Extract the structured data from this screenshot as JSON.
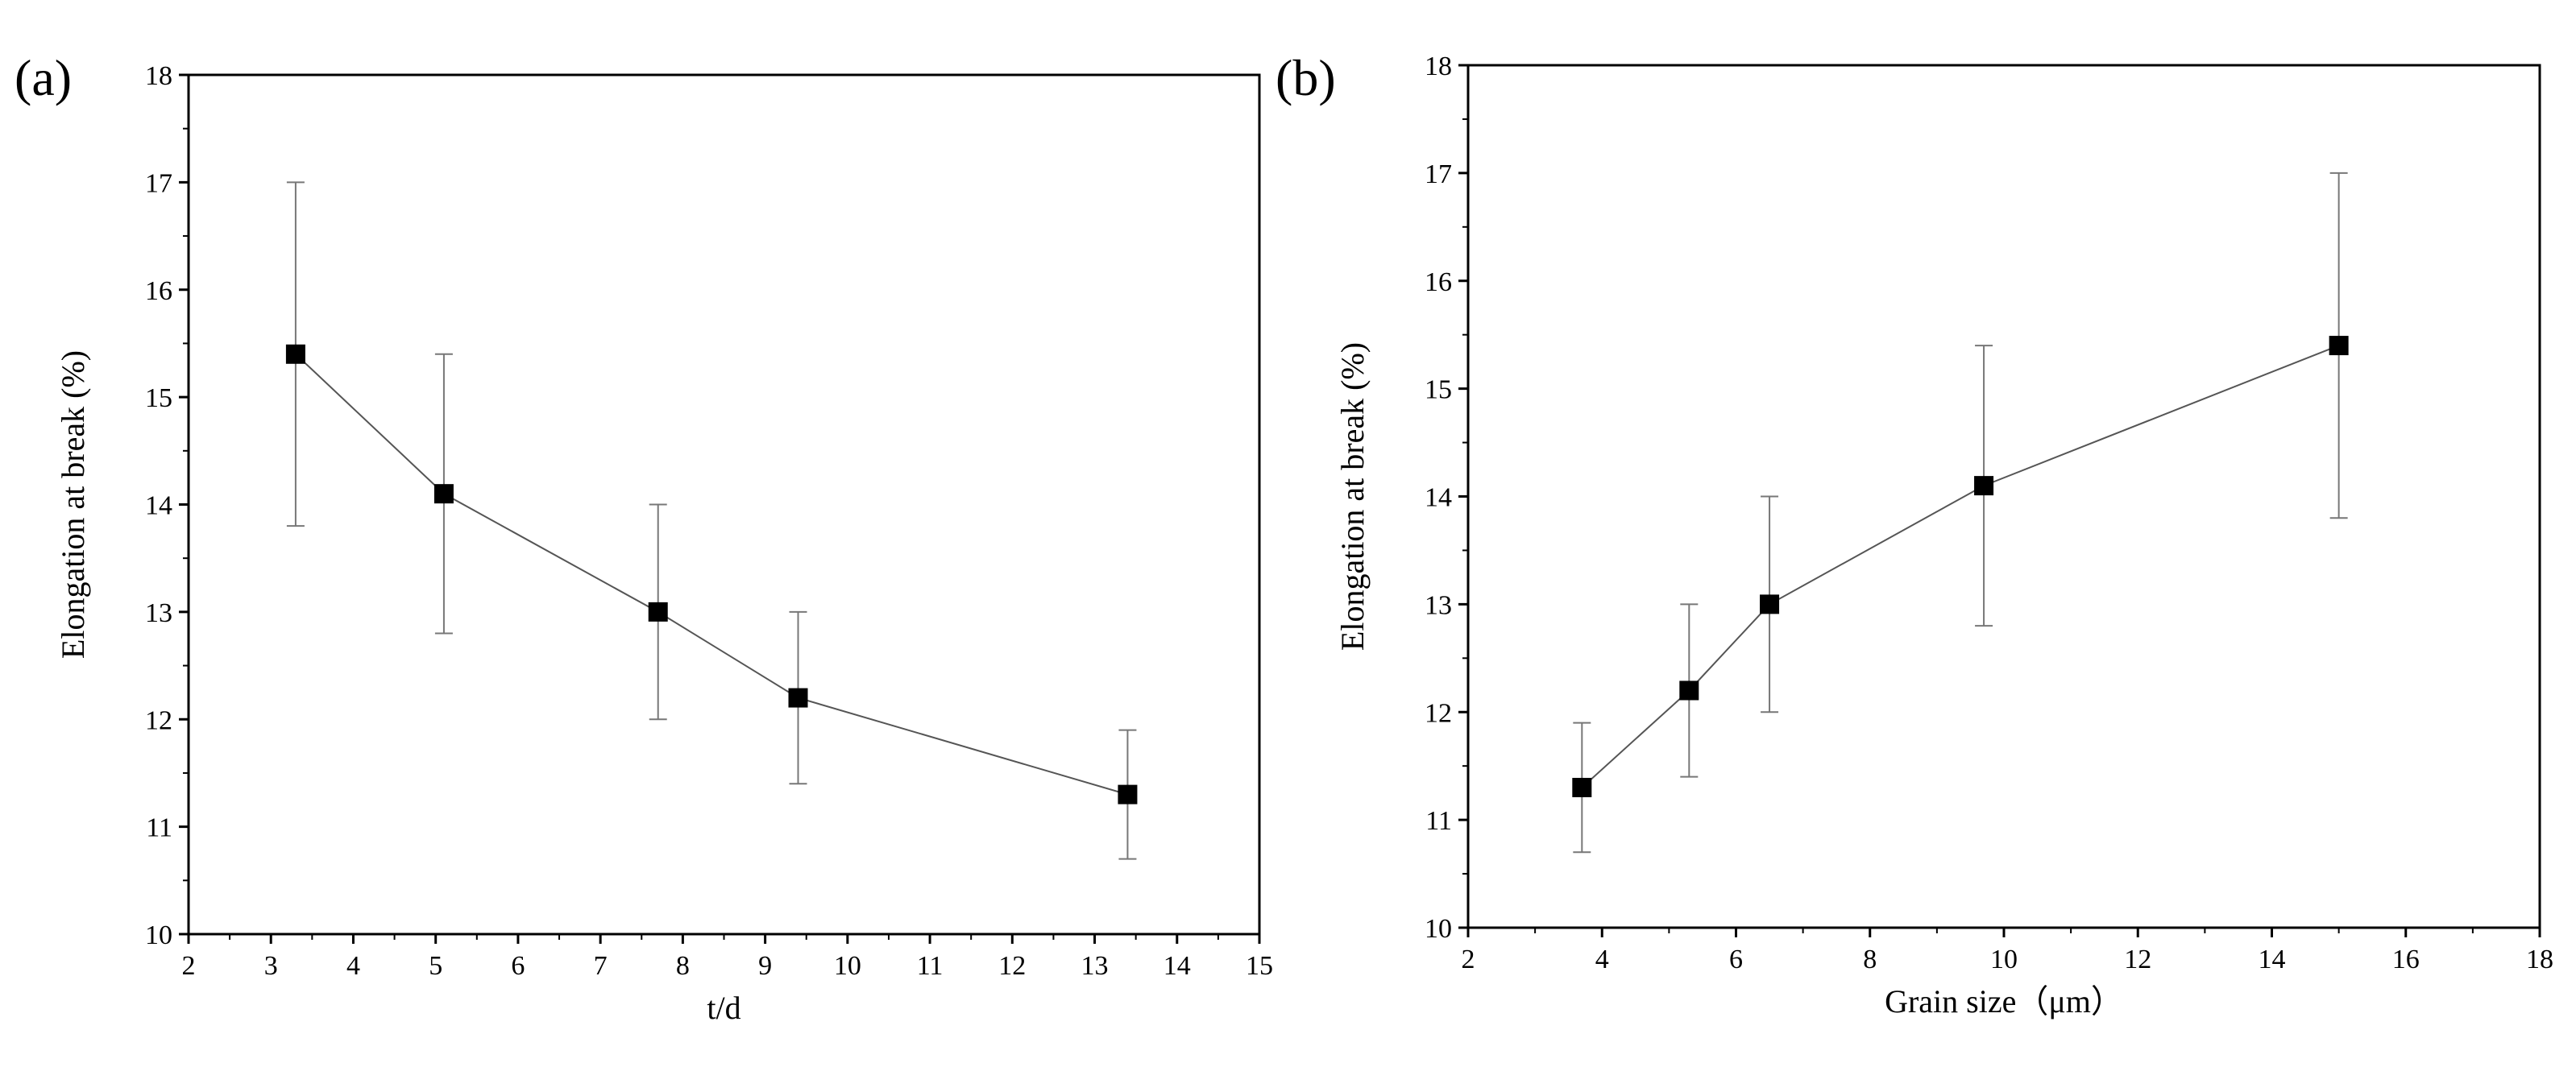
{
  "chart_data": [
    {
      "type": "line",
      "panel_label": "(a)",
      "xlabel": "t/d",
      "ylabel": "Elongation at break (%)",
      "xlim": [
        2,
        15
      ],
      "ylim": [
        10,
        18
      ],
      "xticks": [
        2,
        3,
        4,
        5,
        6,
        7,
        8,
        9,
        10,
        11,
        12,
        13,
        14,
        15
      ],
      "yticks": [
        10,
        11,
        12,
        13,
        14,
        15,
        16,
        17,
        18
      ],
      "marker": "square",
      "line_color": "#555555",
      "marker_color": "#000000",
      "grid": false,
      "series": [
        {
          "x": [
            3.3,
            5.1,
            7.7,
            9.4,
            13.4
          ],
          "y": [
            15.4,
            14.1,
            13.0,
            12.2,
            11.3
          ],
          "err_low": [
            13.8,
            12.8,
            12.0,
            11.4,
            10.7
          ],
          "err_high": [
            17.0,
            15.4,
            14.0,
            13.0,
            11.9
          ]
        }
      ]
    },
    {
      "type": "line",
      "panel_label": "(b)",
      "xlabel": "Grain size（μm）",
      "ylabel": "Elongation at break (%)",
      "xlim": [
        2,
        18
      ],
      "ylim": [
        10,
        18
      ],
      "xticks": [
        2,
        4,
        6,
        8,
        10,
        12,
        14,
        16,
        18
      ],
      "yticks": [
        10,
        11,
        12,
        13,
        14,
        15,
        16,
        17,
        18
      ],
      "marker": "square",
      "line_color": "#555555",
      "marker_color": "#000000",
      "grid": false,
      "series": [
        {
          "x": [
            3.7,
            5.3,
            6.5,
            9.7,
            15.0
          ],
          "y": [
            11.3,
            12.2,
            13.0,
            14.1,
            15.4
          ],
          "err_low": [
            10.7,
            11.4,
            12.0,
            12.8,
            13.8
          ],
          "err_high": [
            11.9,
            13.0,
            14.0,
            15.4,
            17.0
          ]
        }
      ]
    }
  ]
}
